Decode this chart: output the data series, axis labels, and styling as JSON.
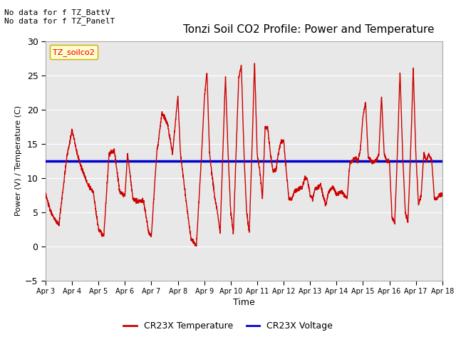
{
  "title": "Tonzi Soil CO2 Profile: Power and Temperature",
  "xlabel": "Time",
  "ylabel": "Power (V) / Temperature (C)",
  "ylim": [
    -5,
    30
  ],
  "yticks": [
    -5,
    0,
    5,
    10,
    15,
    20,
    25,
    30
  ],
  "x_tick_labels": [
    "Apr 3",
    "Apr 4",
    "Apr 5",
    "Apr 6",
    "Apr 7",
    "Apr 8",
    "Apr 9",
    "Apr 10",
    "Apr 11",
    "Apr 12",
    "Apr 13",
    "Apr 14",
    "Apr 15",
    "Apr 16",
    "Apr 17",
    "Apr 18"
  ],
  "annotation_text": "No data for f TZ_BattV\nNo data for f TZ_PanelT",
  "legend_label_box": "TZ_soilco2",
  "legend_temp": "CR23X Temperature",
  "legend_volt": "CR23X Voltage",
  "blue_value": 12.5,
  "fig_color": "#ffffff",
  "plot_bg_color": "#e8e8e8",
  "red_color": "#cc0000",
  "blue_color": "#0000cc",
  "key_points_x": [
    0,
    0.2,
    0.5,
    0.8,
    1.0,
    1.2,
    1.4,
    1.6,
    1.8,
    2.0,
    2.2,
    2.4,
    2.6,
    2.8,
    3.0,
    3.1,
    3.3,
    3.5,
    3.7,
    3.9,
    4.0,
    4.2,
    4.4,
    4.6,
    4.8,
    5.0,
    5.1,
    5.3,
    5.5,
    5.7,
    5.9,
    6.0,
    6.1,
    6.2,
    6.4,
    6.5,
    6.6,
    6.7,
    6.8,
    6.9,
    7.0,
    7.1,
    7.2,
    7.3,
    7.4,
    7.5,
    7.6,
    7.7,
    7.8,
    7.9,
    8.0,
    8.1,
    8.2,
    8.3,
    8.4,
    8.5,
    8.6,
    8.7,
    8.8,
    8.9,
    9.0,
    9.1,
    9.2,
    9.3,
    9.4,
    9.5,
    9.6,
    9.7,
    9.8,
    9.9,
    10.0,
    10.1,
    10.2,
    10.3,
    10.4,
    10.5,
    10.6,
    10.7,
    10.8,
    10.9,
    11.0,
    11.1,
    11.2,
    11.3,
    11.4,
    11.5,
    11.6,
    11.7,
    11.8,
    11.9,
    12.0,
    12.1,
    12.2,
    12.3,
    12.4,
    12.5,
    12.6,
    12.7,
    12.8,
    12.9,
    13.0,
    13.1,
    13.2,
    13.3,
    13.4,
    13.5,
    13.6,
    13.7,
    13.8,
    13.9,
    14.0,
    14.1,
    14.2,
    14.3,
    14.4,
    14.5,
    14.6,
    14.7,
    14.8,
    14.9,
    15.0
  ],
  "key_points_y": [
    7.5,
    5.0,
    3.0,
    13.0,
    17.0,
    13.5,
    11.0,
    9.0,
    8.0,
    2.5,
    1.5,
    13.5,
    14.0,
    8.0,
    7.5,
    13.5,
    7.0,
    6.5,
    6.7,
    2.0,
    1.5,
    13.5,
    19.5,
    18.0,
    13.5,
    22.0,
    13.5,
    7.0,
    1.0,
    0.1,
    13.5,
    21.5,
    25.5,
    13.5,
    7.0,
    5.0,
    2.0,
    13.5,
    25.0,
    13.5,
    5.0,
    2.0,
    13.5,
    24.5,
    26.5,
    13.5,
    5.0,
    2.0,
    13.5,
    27.0,
    13.5,
    11.0,
    7.0,
    17.5,
    17.2,
    13.5,
    11.0,
    11.0,
    13.5,
    15.3,
    15.5,
    11.0,
    7.0,
    6.8,
    8.0,
    8.2,
    8.5,
    8.5,
    10.0,
    9.8,
    7.5,
    7.0,
    8.5,
    8.5,
    9.0,
    7.2,
    6.0,
    8.0,
    8.5,
    8.5,
    7.5,
    7.8,
    8.0,
    7.5,
    7.0,
    12.0,
    12.5,
    13.0,
    12.5,
    14.0,
    19.0,
    21.0,
    13.0,
    12.5,
    12.3,
    12.5,
    13.5,
    22.0,
    13.5,
    12.5,
    12.5,
    4.0,
    3.5,
    13.5,
    25.5,
    13.5,
    5.0,
    3.5,
    13.5,
    26.0,
    13.5,
    6.0,
    7.5,
    13.5,
    12.5,
    13.5,
    12.5,
    7.0,
    7.0,
    7.5,
    7.5
  ]
}
